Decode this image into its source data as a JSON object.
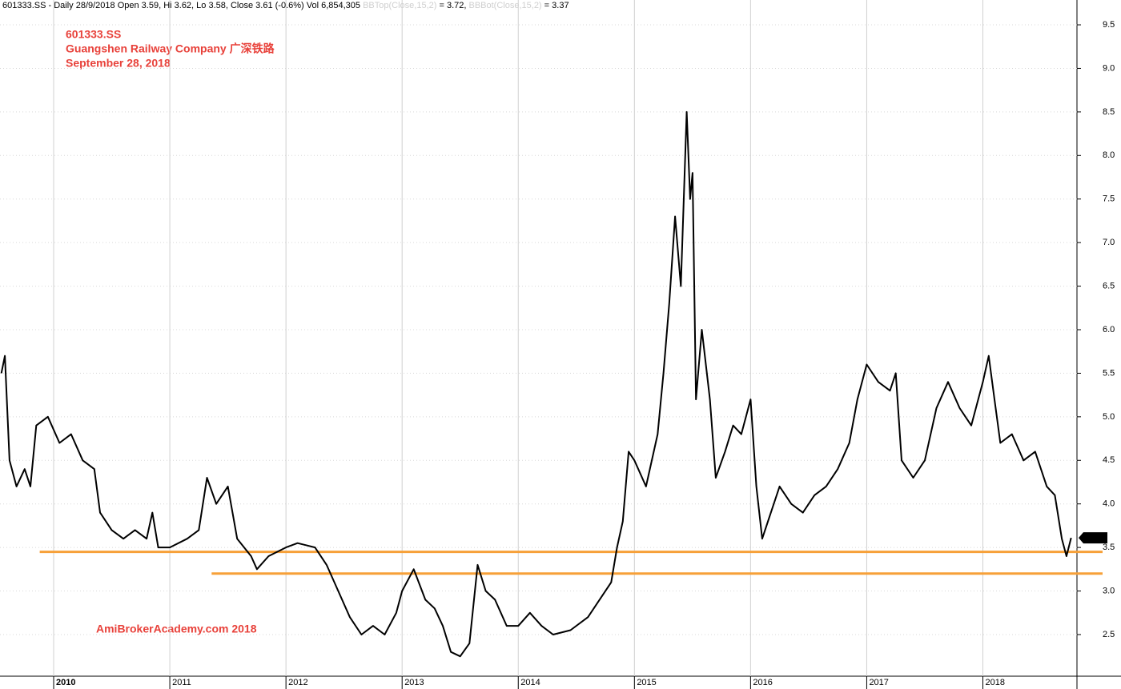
{
  "chart_data": {
    "type": "line",
    "header": {
      "info": "601333.SS - Daily 28/9/2018 Open 3.59, Hi 3.62, Lo 3.58, Close 3.61 (-0.6%) Vol 6,854,305",
      "bbtop_name": "BBTop(Close,15,2)",
      "bbtop_value": "= 3.72,",
      "bbbot_name": "BBBot(Close,15,2)",
      "bbbot_value": "= 3.37"
    },
    "title": "601333.SS",
    "subtitle": "Guangshen Railway Company 广深铁路",
    "date": "September 28, 2018",
    "watermark": "AmiBrokerAcademy.com  2018",
    "color": "#000000",
    "x": [
      2009.55,
      2009.58,
      2009.62,
      2009.68,
      2009.75,
      2009.8,
      2009.85,
      2009.95,
      2010.05,
      2010.15,
      2010.25,
      2010.35,
      2010.4,
      2010.5,
      2010.6,
      2010.7,
      2010.8,
      2010.85,
      2010.9,
      2011.0,
      2011.15,
      2011.25,
      2011.32,
      2011.4,
      2011.5,
      2011.58,
      2011.7,
      2011.75,
      2011.85,
      2012.0,
      2012.1,
      2012.25,
      2012.35,
      2012.45,
      2012.55,
      2012.65,
      2012.75,
      2012.85,
      2012.95,
      2013.0,
      2013.1,
      2013.2,
      2013.28,
      2013.35,
      2013.42,
      2013.5,
      2013.58,
      2013.65,
      2013.72,
      2013.8,
      2013.9,
      2014.0,
      2014.1,
      2014.2,
      2014.3,
      2014.45,
      2014.6,
      2014.7,
      2014.8,
      2014.85,
      2014.9,
      2014.95,
      2015.0,
      2015.1,
      2015.2,
      2015.25,
      2015.3,
      2015.35,
      2015.4,
      2015.45,
      2015.48,
      2015.5,
      2015.53,
      2015.58,
      2015.65,
      2015.7,
      2015.78,
      2015.85,
      2015.92,
      2016.0,
      2016.05,
      2016.1,
      2016.15,
      2016.25,
      2016.35,
      2016.45,
      2016.55,
      2016.65,
      2016.75,
      2016.85,
      2016.92,
      2017.0,
      2017.1,
      2017.2,
      2017.25,
      2017.3,
      2017.4,
      2017.5,
      2017.6,
      2017.7,
      2017.8,
      2017.9,
      2018.0,
      2018.05,
      2018.1,
      2018.15,
      2018.25,
      2018.35,
      2018.45,
      2018.55,
      2018.62,
      2018.68,
      2018.72,
      2018.76
    ],
    "values": [
      5.5,
      5.7,
      4.5,
      4.2,
      4.4,
      4.2,
      4.9,
      5.0,
      4.7,
      4.8,
      4.5,
      4.4,
      3.9,
      3.7,
      3.6,
      3.7,
      3.6,
      3.9,
      3.5,
      3.5,
      3.6,
      3.7,
      4.3,
      4.0,
      4.2,
      3.6,
      3.4,
      3.25,
      3.4,
      3.5,
      3.55,
      3.5,
      3.3,
      3.0,
      2.7,
      2.5,
      2.6,
      2.5,
      2.75,
      3.0,
      3.25,
      2.9,
      2.8,
      2.6,
      2.3,
      2.25,
      2.4,
      3.3,
      3.0,
      2.9,
      2.6,
      2.6,
      2.75,
      2.6,
      2.5,
      2.55,
      2.7,
      2.9,
      3.1,
      3.5,
      3.8,
      4.6,
      4.5,
      4.2,
      4.8,
      5.5,
      6.3,
      7.3,
      6.5,
      8.5,
      7.5,
      7.8,
      5.2,
      6.0,
      5.2,
      4.3,
      4.6,
      4.9,
      4.8,
      5.2,
      4.2,
      3.6,
      3.8,
      4.2,
      4.0,
      3.9,
      4.1,
      4.2,
      4.4,
      4.7,
      5.2,
      5.6,
      5.4,
      5.3,
      5.5,
      4.5,
      4.3,
      4.5,
      5.1,
      5.4,
      5.1,
      4.9,
      5.4,
      5.7,
      5.2,
      4.7,
      4.8,
      4.5,
      4.6,
      4.2,
      4.1,
      3.6,
      3.4,
      3.61
    ],
    "last_value": 3.61,
    "xlim": [
      2009.538,
      2018.81
    ],
    "xticks": [
      2010,
      2011,
      2012,
      2013,
      2014,
      2015,
      2016,
      2017,
      2018
    ],
    "ylim": [
      2.022,
      9.785
    ],
    "yticks": [
      {
        "value": 2.5,
        "label": "2.5"
      },
      {
        "value": 3,
        "label": "3.0"
      },
      {
        "value": 3.5,
        "label": "3.5"
      },
      {
        "value": 4,
        "label": "4.0"
      },
      {
        "value": 4.5,
        "label": "4.5"
      },
      {
        "value": 5,
        "label": "5.0"
      },
      {
        "value": 5.5,
        "label": "5.5"
      },
      {
        "value": 6,
        "label": "6.0"
      },
      {
        "value": 6.5,
        "label": "6.5"
      },
      {
        "value": 7,
        "label": "7.0"
      },
      {
        "value": 7.5,
        "label": "7.5"
      },
      {
        "value": 8,
        "label": "8.0"
      },
      {
        "value": 8.5,
        "label": "8.5"
      },
      {
        "value": 9,
        "label": "9.0"
      },
      {
        "value": 9.5,
        "label": "9.5"
      }
    ],
    "hlines": [
      {
        "value": 3.45,
        "x0": 2009.88,
        "color": "#f7a038"
      },
      {
        "value": 3.2,
        "x0": 2011.36,
        "color": "#f7a038"
      }
    ],
    "grid": true
  }
}
